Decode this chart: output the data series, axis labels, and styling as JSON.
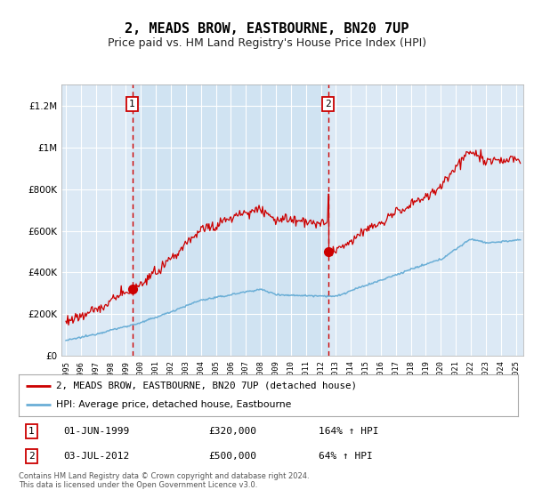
{
  "title": "2, MEADS BROW, EASTBOURNE, BN20 7UP",
  "subtitle": "Price paid vs. HM Land Registry's House Price Index (HPI)",
  "sale1_date": "01-JUN-1999",
  "sale1_price": 320000,
  "sale1_label": "164% ↑ HPI",
  "sale2_date": "03-JUL-2012",
  "sale2_price": 500000,
  "sale2_label": "64% ↑ HPI",
  "sale1_x": 1999.42,
  "sale2_x": 2012.5,
  "legend_label1": "2, MEADS BROW, EASTBOURNE, BN20 7UP (detached house)",
  "legend_label2": "HPI: Average price, detached house, Eastbourne",
  "footer": "Contains HM Land Registry data © Crown copyright and database right 2024.\nThis data is licensed under the Open Government Licence v3.0.",
  "background_color": "#dce9f5",
  "hpi_color": "#6aaed6",
  "price_color": "#cc0000",
  "vline_color": "#cc0000",
  "ylim_min": 0,
  "ylim_max": 1300000,
  "xlim_start": 1994.7,
  "xlim_end": 2025.5,
  "title_fontsize": 11,
  "subtitle_fontsize": 9
}
